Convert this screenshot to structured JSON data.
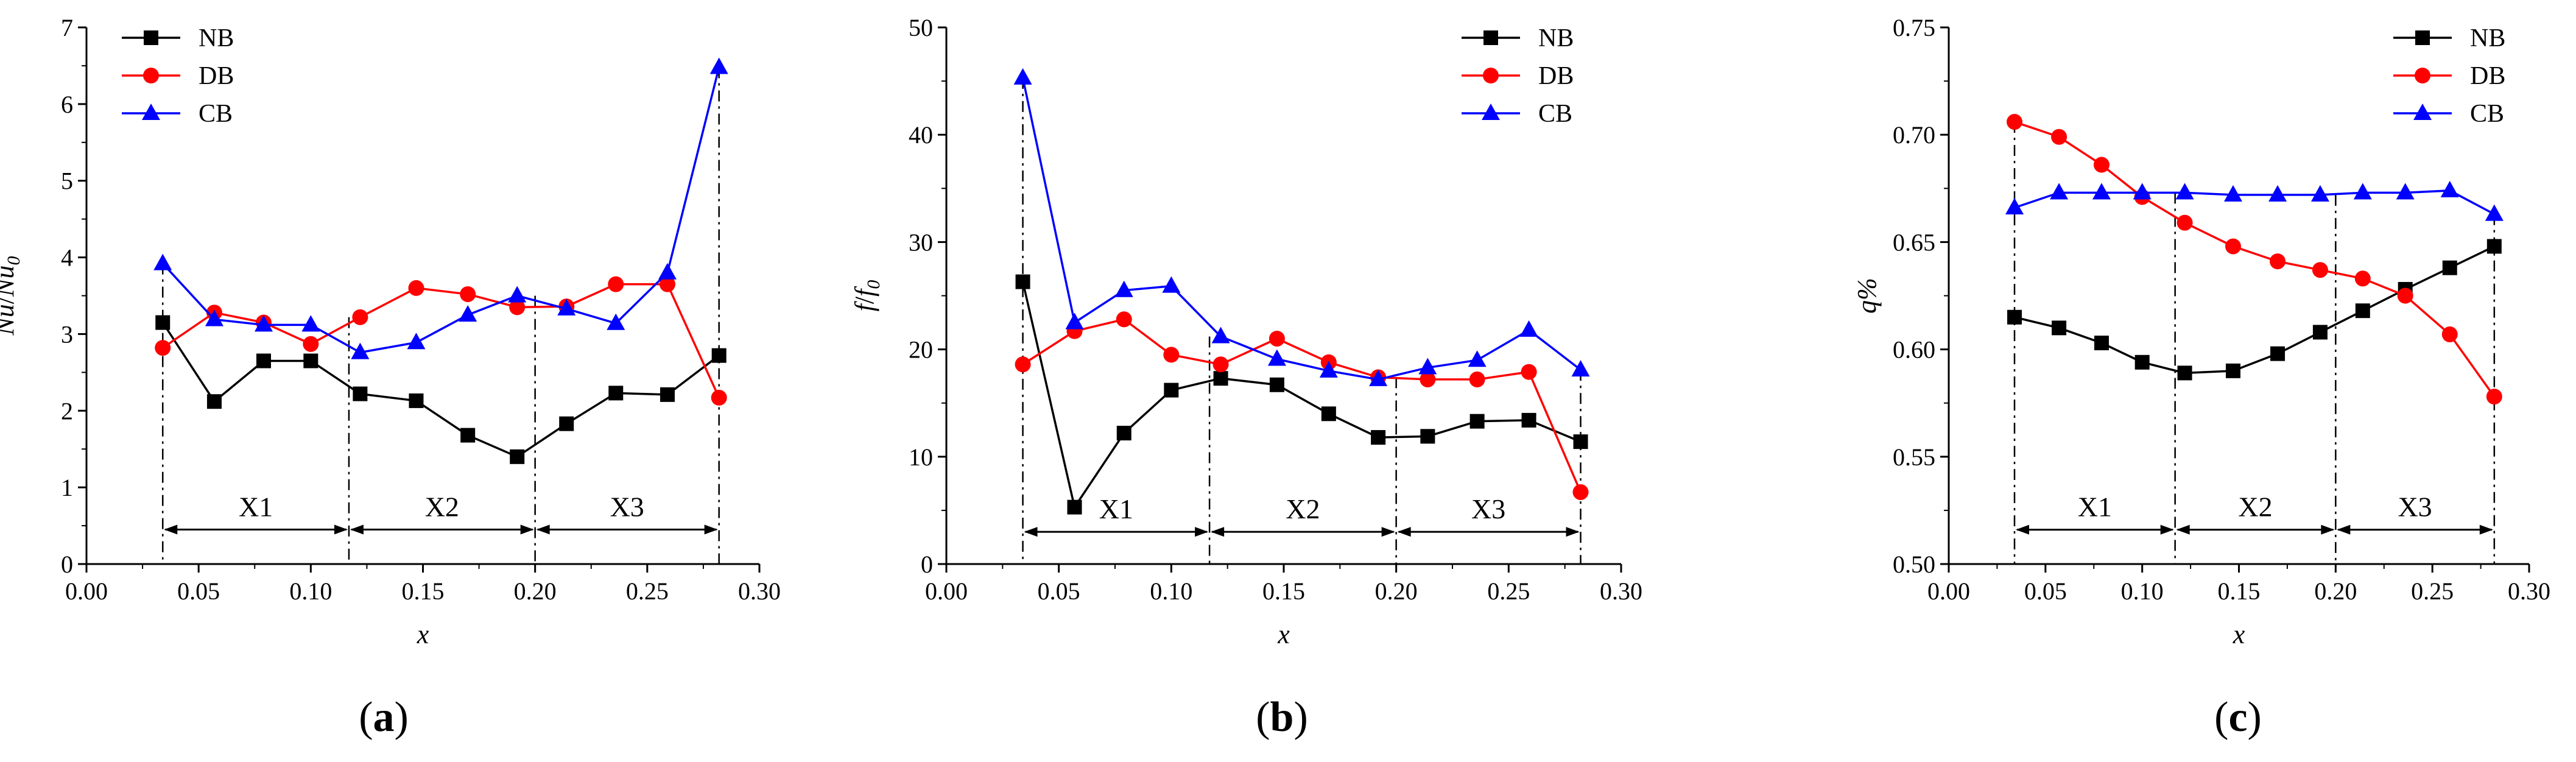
{
  "chart_data": [
    {
      "type": "line",
      "panel": "a",
      "panel_label": {
        "open": "(",
        "letter": "a",
        "close": ")"
      },
      "xlabel": "x",
      "ylabel_main": "Nu",
      "ylabel_sep": "/",
      "ylabel_main2": "Nu",
      "ylabel_sub": "0",
      "xlim": [
        0.0,
        0.3
      ],
      "ylim": [
        0,
        7
      ],
      "xticks": [
        0.0,
        0.05,
        0.1,
        0.15,
        0.2,
        0.25,
        0.3
      ],
      "xtick_labels": [
        "0.00",
        "0.05",
        "0.10",
        "0.15",
        "0.20",
        "0.25",
        "0.30"
      ],
      "yticks": [
        0,
        1,
        2,
        3,
        4,
        5,
        6,
        7
      ],
      "ytick_labels": [
        "0",
        "1",
        "2",
        "3",
        "4",
        "5",
        "6",
        "7"
      ],
      "region_bounds": [
        0.034,
        0.117,
        0.2,
        0.282
      ],
      "region_arrow_y": 0.45,
      "region_labels": [
        "X1",
        "X2",
        "X3"
      ],
      "legend_position": "top-left",
      "series": [
        {
          "name": "NB",
          "color": "#000000",
          "marker": "square",
          "x": [
            0.034,
            0.057,
            0.079,
            0.1,
            0.122,
            0.147,
            0.17,
            0.192,
            0.214,
            0.236,
            0.259,
            0.282
          ],
          "y": [
            3.15,
            2.12,
            2.65,
            2.65,
            2.22,
            2.13,
            1.68,
            1.4,
            1.83,
            2.23,
            2.21,
            2.72
          ]
        },
        {
          "name": "DB",
          "color": "#ff0000",
          "marker": "circle",
          "x": [
            0.034,
            0.057,
            0.079,
            0.1,
            0.122,
            0.147,
            0.17,
            0.192,
            0.214,
            0.236,
            0.259,
            0.282
          ],
          "y": [
            2.82,
            3.28,
            3.15,
            2.87,
            3.22,
            3.6,
            3.52,
            3.35,
            3.36,
            3.65,
            3.65,
            2.17
          ]
        },
        {
          "name": "CB",
          "color": "#0000ff",
          "marker": "triangle",
          "x": [
            0.034,
            0.057,
            0.079,
            0.1,
            0.122,
            0.147,
            0.17,
            0.192,
            0.214,
            0.236,
            0.259,
            0.282
          ],
          "y": [
            3.92,
            3.19,
            3.12,
            3.12,
            2.76,
            2.89,
            3.25,
            3.5,
            3.33,
            3.14,
            3.8,
            6.48
          ]
        }
      ]
    },
    {
      "type": "line",
      "panel": "b",
      "panel_label": {
        "open": "(",
        "letter": "b",
        "close": ")"
      },
      "xlabel": "x",
      "ylabel_main": "f",
      "ylabel_sep": "/",
      "ylabel_main2": "f",
      "ylabel_sub": "0",
      "xlim": [
        0.0,
        0.3
      ],
      "ylim": [
        0,
        50
      ],
      "xticks": [
        0.0,
        0.05,
        0.1,
        0.15,
        0.2,
        0.25,
        0.3
      ],
      "xtick_labels": [
        "0.00",
        "0.05",
        "0.10",
        "0.15",
        "0.20",
        "0.25",
        "0.30"
      ],
      "yticks": [
        0,
        10,
        20,
        30,
        40,
        50
      ],
      "ytick_labels": [
        "0",
        "10",
        "20",
        "30",
        "40",
        "50"
      ],
      "region_bounds": [
        0.034,
        0.117,
        0.2,
        0.282
      ],
      "region_arrow_y": 3.0,
      "region_labels": [
        "X1",
        "X2",
        "X3"
      ],
      "legend_position": "top-right",
      "series": [
        {
          "name": "NB",
          "color": "#000000",
          "marker": "square",
          "x": [
            0.034,
            0.057,
            0.079,
            0.1,
            0.122,
            0.147,
            0.17,
            0.192,
            0.214,
            0.236,
            0.259,
            0.282
          ],
          "y": [
            26.3,
            5.3,
            12.2,
            16.2,
            17.3,
            16.7,
            14.0,
            11.8,
            11.9,
            13.3,
            13.4,
            11.4
          ]
        },
        {
          "name": "DB",
          "color": "#ff0000",
          "marker": "circle",
          "x": [
            0.034,
            0.057,
            0.079,
            0.1,
            0.122,
            0.147,
            0.17,
            0.192,
            0.214,
            0.236,
            0.259,
            0.282
          ],
          "y": [
            18.6,
            21.7,
            22.8,
            19.5,
            18.6,
            21.0,
            18.8,
            17.4,
            17.2,
            17.2,
            17.9,
            6.7
          ]
        },
        {
          "name": "CB",
          "color": "#0000ff",
          "marker": "triangle",
          "x": [
            0.034,
            0.057,
            0.079,
            0.1,
            0.122,
            0.147,
            0.17,
            0.192,
            0.214,
            0.236,
            0.259,
            0.282
          ],
          "y": [
            45.3,
            22.5,
            25.5,
            25.9,
            21.2,
            19.1,
            18.0,
            17.2,
            18.3,
            19.0,
            21.8,
            18.1
          ]
        }
      ]
    },
    {
      "type": "line",
      "panel": "c",
      "panel_label": {
        "open": "(",
        "letter": "c",
        "close": ")"
      },
      "xlabel": "x",
      "ylabel_main": "q",
      "ylabel_sep": "",
      "ylabel_main2": "%",
      "ylabel_sub": "",
      "xlim": [
        0.0,
        0.3
      ],
      "ylim": [
        0.5,
        0.75
      ],
      "xticks": [
        0.0,
        0.05,
        0.1,
        0.15,
        0.2,
        0.25,
        0.3
      ],
      "xtick_labels": [
        "0.00",
        "0.05",
        "0.10",
        "0.15",
        "0.20",
        "0.25",
        "0.30"
      ],
      "yticks": [
        0.5,
        0.55,
        0.6,
        0.65,
        0.7,
        0.75
      ],
      "ytick_labels": [
        "0.50",
        "0.55",
        "0.60",
        "0.65",
        "0.70",
        "0.75"
      ],
      "region_bounds": [
        0.034,
        0.117,
        0.2,
        0.282
      ],
      "region_arrow_y": 0.516,
      "region_labels": [
        "X1",
        "X2",
        "X3"
      ],
      "legend_position": "top-right",
      "series": [
        {
          "name": "NB",
          "color": "#000000",
          "marker": "square",
          "x": [
            0.034,
            0.057,
            0.079,
            0.1,
            0.122,
            0.147,
            0.17,
            0.192,
            0.214,
            0.236,
            0.259,
            0.282
          ],
          "y": [
            0.615,
            0.61,
            0.603,
            0.594,
            0.589,
            0.59,
            0.598,
            0.608,
            0.618,
            0.628,
            0.638,
            0.648
          ]
        },
        {
          "name": "DB",
          "color": "#ff0000",
          "marker": "circle",
          "x": [
            0.034,
            0.057,
            0.079,
            0.1,
            0.122,
            0.147,
            0.17,
            0.192,
            0.214,
            0.236,
            0.259,
            0.282
          ],
          "y": [
            0.706,
            0.699,
            0.686,
            0.671,
            0.659,
            0.648,
            0.641,
            0.637,
            0.633,
            0.625,
            0.607,
            0.578
          ]
        },
        {
          "name": "CB",
          "color": "#0000ff",
          "marker": "triangle",
          "x": [
            0.034,
            0.057,
            0.079,
            0.1,
            0.122,
            0.147,
            0.17,
            0.192,
            0.214,
            0.236,
            0.259,
            0.282
          ],
          "y": [
            0.666,
            0.673,
            0.673,
            0.673,
            0.673,
            0.672,
            0.672,
            0.672,
            0.673,
            0.673,
            0.674,
            0.663
          ]
        }
      ]
    }
  ]
}
